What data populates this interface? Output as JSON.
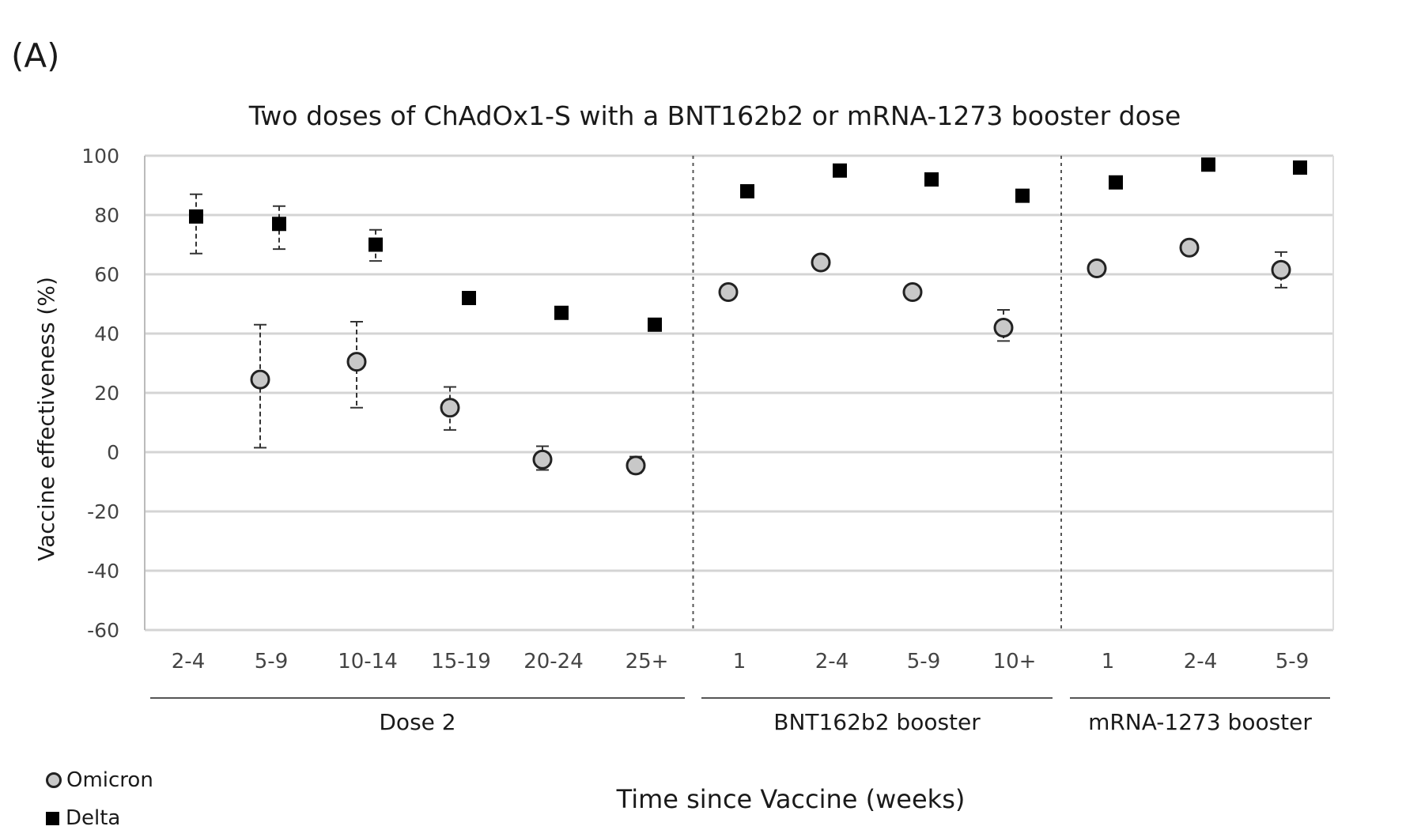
{
  "panel_label": "(A)",
  "chart_data": {
    "type": "scatter",
    "title": "Two doses of ChAdOx1-S with a BNT162b2 or mRNA-1273 booster dose",
    "xlabel": "Time since Vaccine (weeks)",
    "ylabel": "Vaccine effectiveness (%)",
    "ylim": [
      -60,
      100
    ],
    "yticks": [
      100,
      80,
      60,
      40,
      20,
      0,
      -20,
      -40,
      -60
    ],
    "grid": true,
    "categories": [
      "2-4",
      "5-9",
      "10-14",
      "15-19",
      "20-24",
      "25+",
      "1",
      "2-4",
      "5-9",
      "10+",
      "1",
      "2-4",
      "5-9"
    ],
    "groups": [
      {
        "label": "Dose 2",
        "start": 0,
        "end": 5
      },
      {
        "label": "BNT162b2 booster",
        "start": 6,
        "end": 9
      },
      {
        "label": "mRNA-1273 booster",
        "start": 10,
        "end": 12
      }
    ],
    "series": [
      {
        "name": "Omicron",
        "marker": "circle",
        "color": "#c8c8c8",
        "values": [
          null,
          24.5,
          30.5,
          15,
          -2.5,
          -4.5,
          54,
          64,
          54,
          42,
          62,
          69,
          61.5
        ],
        "ci_low": [
          null,
          1.5,
          15,
          7.5,
          -6,
          -7,
          null,
          null,
          null,
          37.5,
          null,
          null,
          55.5
        ],
        "ci_high": [
          null,
          43,
          44,
          22,
          2,
          -1.5,
          null,
          null,
          null,
          48,
          null,
          null,
          67.5
        ]
      },
      {
        "name": "Delta",
        "marker": "square",
        "color": "#000000",
        "values": [
          79.5,
          77,
          70,
          52,
          47,
          43,
          88,
          95,
          92,
          86.5,
          91,
          97,
          96
        ],
        "ci_low": [
          67,
          68.5,
          64.5,
          null,
          null,
          null,
          null,
          null,
          null,
          null,
          null,
          null,
          null
        ],
        "ci_high": [
          87,
          83,
          75,
          null,
          null,
          null,
          null,
          null,
          null,
          null,
          null,
          null,
          null
        ]
      }
    ],
    "legend": [
      {
        "label": "Omicron",
        "marker": "circle"
      },
      {
        "label": "Delta",
        "marker": "square"
      }
    ],
    "legend_position": "bottom-left"
  }
}
